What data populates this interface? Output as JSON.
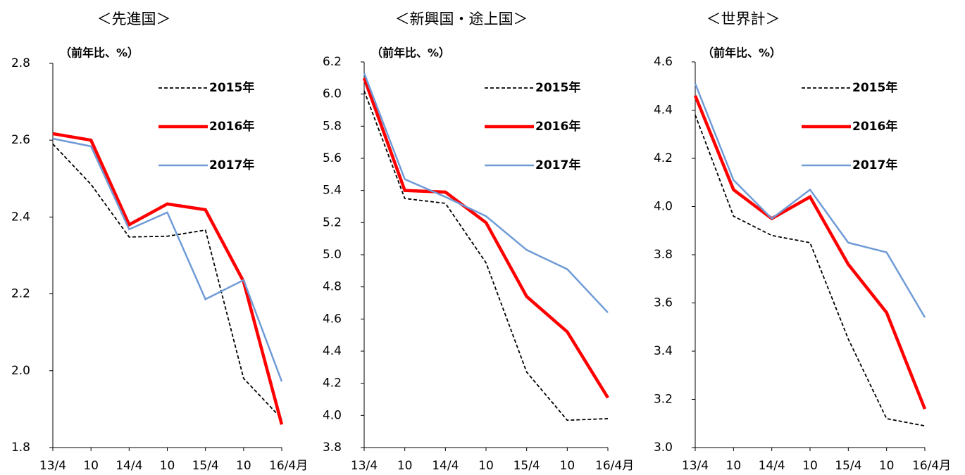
{
  "chart_data": [
    {
      "type": "line",
      "title": "＜先進国＞",
      "y_label": "（前年比、%）",
      "categories": [
        "13/4",
        "10",
        "14/4",
        "10",
        "15/4",
        "10",
        "16/4月"
      ],
      "ylim": [
        1.8,
        2.8
      ],
      "yticks": [
        1.8,
        {
          "value": 2,
          "label": "2.0"
        },
        2.2,
        2.4,
        2.6,
        2.8
      ],
      "series": [
        {
          "name": "2015年",
          "color": "#000000",
          "linestyle": "dashed",
          "linewidth": 1.8,
          "values": [
            2.59,
            2.485,
            2.348,
            2.35,
            2.366,
            1.98,
            1.875
          ]
        },
        {
          "name": "2016年",
          "color": "#ff0000",
          "linestyle": "solid",
          "linewidth": 4.5,
          "values": [
            2.617,
            2.6,
            2.38,
            2.434,
            2.419,
            2.232,
            1.86
          ]
        },
        {
          "name": "2017年",
          "color": "#6f9bd7",
          "linestyle": "solid",
          "linewidth": 2.5,
          "values": [
            2.604,
            2.584,
            2.368,
            2.412,
            2.186,
            2.236,
            1.972
          ]
        }
      ]
    },
    {
      "type": "line",
      "title": "＜新興国・途上国＞",
      "y_label": "（前年比、%）",
      "categories": [
        "13/4",
        "10",
        "14/4",
        "10",
        "15/4",
        "10",
        "16/4月"
      ],
      "ylim": [
        3.8,
        6.2
      ],
      "yticks": [
        3.8,
        {
          "value": 4,
          "label": "4.0"
        },
        4.2,
        4.4,
        4.6,
        4.8,
        {
          "value": 5,
          "label": "5.0"
        },
        5.2,
        5.4,
        5.6,
        5.8,
        {
          "value": 6,
          "label": "6.0"
        },
        6.2
      ],
      "series": [
        {
          "name": "2015年",
          "color": "#000000",
          "linestyle": "dashed",
          "linewidth": 1.8,
          "values": [
            6.02,
            5.35,
            5.32,
            4.95,
            4.27,
            3.97,
            3.98
          ]
        },
        {
          "name": "2016年",
          "color": "#ff0000",
          "linestyle": "solid",
          "linewidth": 4.5,
          "values": [
            6.1,
            5.4,
            5.39,
            5.2,
            4.74,
            4.52,
            4.11
          ]
        },
        {
          "name": "2017年",
          "color": "#6f9bd7",
          "linestyle": "solid",
          "linewidth": 2.5,
          "values": [
            6.13,
            5.47,
            5.36,
            5.24,
            5.03,
            4.91,
            4.64
          ]
        }
      ]
    },
    {
      "type": "line",
      "title": "＜世界計＞",
      "y_label": "（前年比、%）",
      "categories": [
        "13/4",
        "10",
        "14/4",
        "10",
        "15/4",
        "10",
        "16/4月"
      ],
      "ylim": [
        3.0,
        4.6
      ],
      "yticks": [
        {
          "value": 3,
          "label": "3.0"
        },
        3.2,
        3.4,
        3.6,
        3.8,
        {
          "value": 4,
          "label": "4.0"
        },
        4.2,
        4.4,
        4.6
      ],
      "series": [
        {
          "name": "2015年",
          "color": "#000000",
          "linestyle": "dashed",
          "linewidth": 1.8,
          "values": [
            4.38,
            3.96,
            3.88,
            3.85,
            3.45,
            3.12,
            3.09
          ]
        },
        {
          "name": "2016年",
          "color": "#ff0000",
          "linestyle": "solid",
          "linewidth": 4.5,
          "values": [
            4.46,
            4.07,
            3.95,
            4.04,
            3.76,
            3.56,
            3.16
          ]
        },
        {
          "name": "2017年",
          "color": "#6f9bd7",
          "linestyle": "solid",
          "linewidth": 2.5,
          "values": [
            4.51,
            4.11,
            3.95,
            4.07,
            3.85,
            3.81,
            3.54
          ]
        }
      ]
    }
  ]
}
